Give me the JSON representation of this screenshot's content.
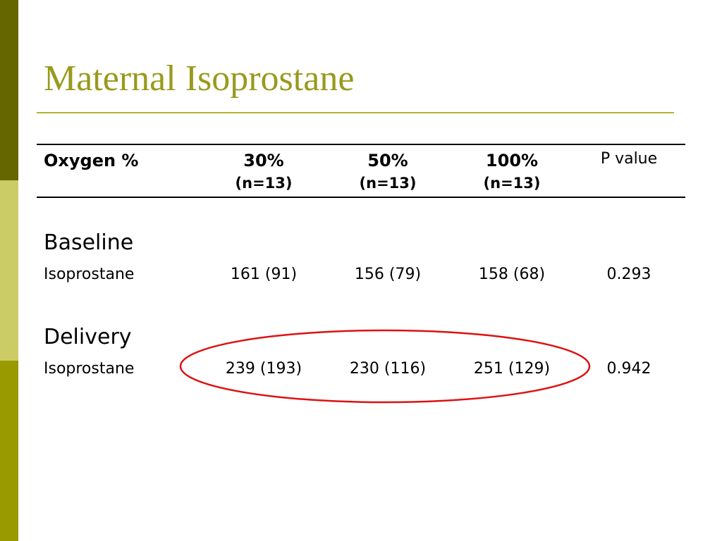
{
  "title": "Maternal Isoprostane",
  "table": {
    "header": [
      "Oxygen %",
      "30%",
      "50%",
      "100%",
      "P value"
    ],
    "subheader": [
      "(n=13)",
      "(n=13)",
      "(n=13)"
    ],
    "sections": [
      {
        "name": "Baseline",
        "row": [
          "Isoprostane",
          "161 (91)",
          "156 (79)",
          "158 (68)",
          "0.293"
        ]
      },
      {
        "name": "Delivery",
        "row": [
          "Isoprostane",
          "239 (193)",
          "230 (116)",
          "251 (129)",
          "0.942"
        ]
      }
    ]
  }
}
